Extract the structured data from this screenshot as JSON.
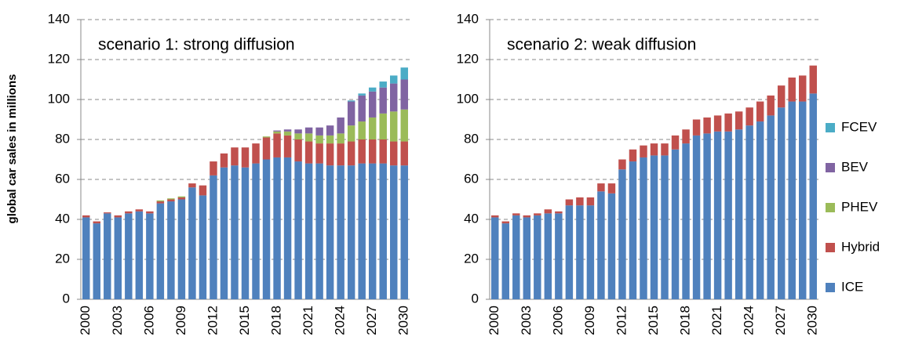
{
  "chart_data": [
    {
      "type": "stacked-bar",
      "title": "scenario 1: strong diffusion",
      "ylabel": "global car sales in millions",
      "categories": [
        "2000",
        null,
        null,
        "2003",
        null,
        null,
        "2006",
        null,
        null,
        "2009",
        null,
        null,
        "2012",
        null,
        null,
        "2015",
        null,
        null,
        "2018",
        null,
        null,
        "2021",
        null,
        null,
        "2024",
        null,
        null,
        "2027",
        null,
        null,
        "2030"
      ],
      "series": [
        {
          "name": "ICE",
          "color": "#4f81bd",
          "values": [
            41,
            38,
            43,
            41,
            43,
            44,
            43,
            48,
            49,
            50,
            56,
            52,
            62,
            66,
            67,
            66,
            68,
            70,
            71,
            71,
            69,
            68,
            68,
            67,
            67,
            67,
            68,
            68,
            68,
            67,
            67
          ]
        },
        {
          "name": "Hybrid",
          "color": "#c0504d",
          "values": [
            1,
            1,
            0.5,
            1,
            1,
            1,
            1,
            1,
            1,
            1,
            2,
            5,
            7,
            7,
            9,
            10,
            10,
            11,
            12,
            11,
            11,
            11,
            10,
            11,
            11,
            12,
            12,
            12,
            12,
            12,
            12
          ]
        },
        {
          "name": "PHEV",
          "color": "#9bbb59",
          "values": [
            0,
            0,
            0,
            0,
            0,
            0,
            0,
            0.5,
            0.5,
            0.5,
            0,
            0,
            0,
            0,
            0,
            0,
            0,
            0.5,
            1,
            2,
            3,
            4,
            4,
            4,
            5,
            8,
            9,
            11,
            13,
            15,
            16
          ]
        },
        {
          "name": "BEV",
          "color": "#8064a2",
          "values": [
            0,
            0,
            0,
            0,
            0,
            0,
            0,
            0,
            0,
            0,
            0,
            0,
            0,
            0,
            0,
            0,
            0,
            0,
            0.5,
            1,
            2,
            3,
            4,
            5,
            8,
            12,
            13,
            13,
            13,
            14,
            15
          ]
        },
        {
          "name": "FCEV",
          "color": "#4bacc6",
          "values": [
            0,
            0,
            0,
            0,
            0,
            0,
            0,
            0,
            0,
            0,
            0,
            0,
            0,
            0,
            0,
            0,
            0,
            0,
            0,
            0,
            0,
            0,
            0,
            0,
            0,
            0.5,
            1,
            2,
            3,
            4,
            6
          ]
        }
      ],
      "ylim": [
        0,
        140
      ],
      "yticks": [
        0,
        20,
        40,
        60,
        80,
        100,
        120,
        140
      ],
      "grid": true
    },
    {
      "type": "stacked-bar",
      "title": "scenario 2: weak diffusion",
      "categories": [
        "2000",
        null,
        null,
        "2003",
        null,
        null,
        "2006",
        null,
        null,
        "2009",
        null,
        null,
        "2012",
        null,
        null,
        "2015",
        null,
        null,
        "2018",
        null,
        null,
        "2021",
        null,
        null,
        "2024",
        null,
        null,
        "2027",
        null,
        null,
        "2030"
      ],
      "series": [
        {
          "name": "ICE",
          "color": "#4f81bd",
          "values": [
            41,
            38,
            42,
            41,
            42,
            43,
            43,
            47,
            47,
            47,
            54,
            53,
            65,
            69,
            71,
            72,
            72,
            75,
            78,
            82,
            83,
            84,
            84,
            85,
            87,
            89,
            92,
            96,
            99,
            99,
            103
          ]
        },
        {
          "name": "Hybrid",
          "color": "#c0504d",
          "values": [
            1,
            1,
            1,
            1,
            1,
            2,
            1,
            3,
            4,
            4,
            4,
            5,
            5,
            6,
            6,
            6,
            6,
            7,
            7,
            8,
            8,
            8,
            9,
            9,
            9,
            10,
            10,
            11,
            12,
            13,
            14
          ]
        }
      ],
      "ylim": [
        0,
        140
      ],
      "yticks": [
        0,
        20,
        40,
        60,
        80,
        100,
        120,
        140
      ],
      "grid": true
    }
  ]
}
